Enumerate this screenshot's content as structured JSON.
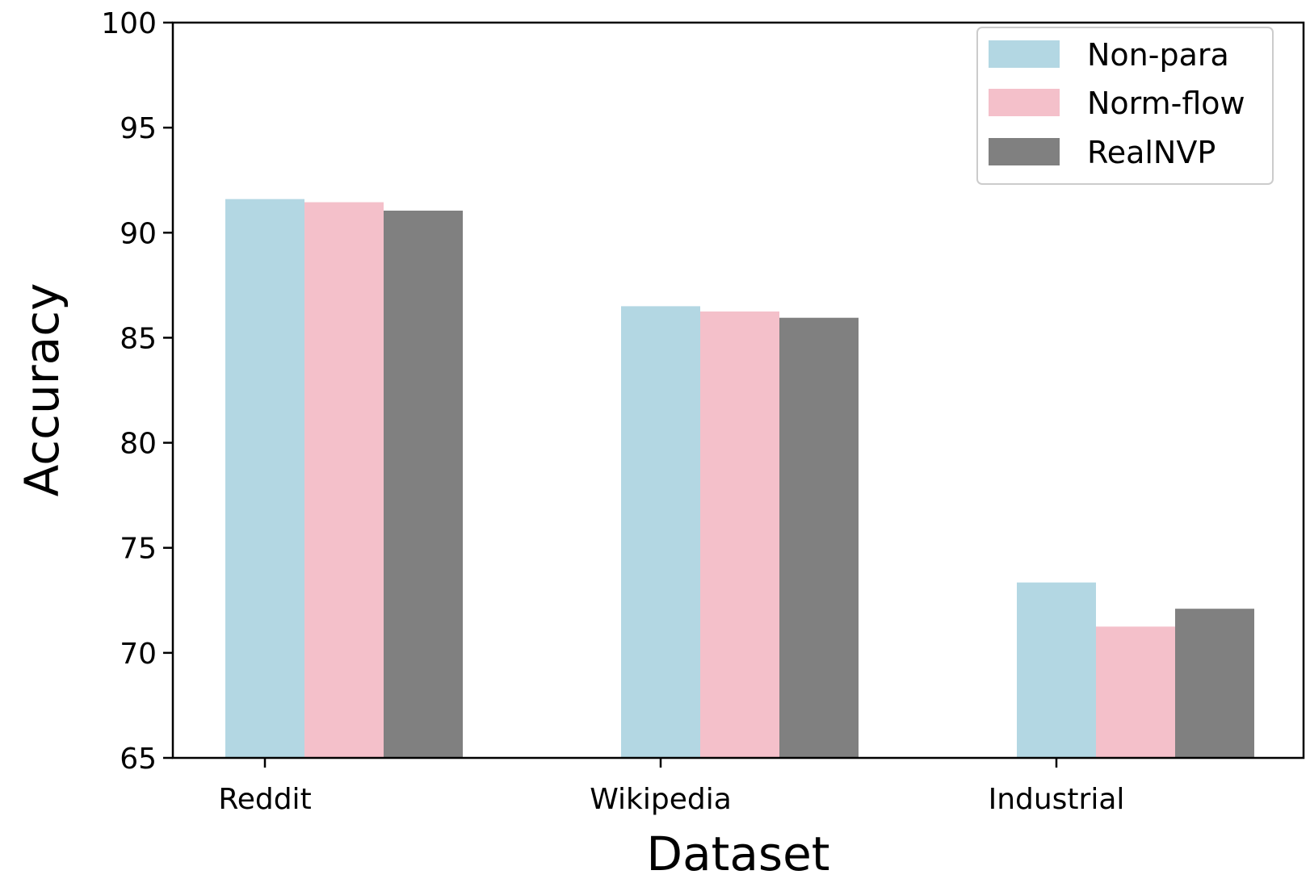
{
  "chart_data": {
    "type": "bar",
    "title": "",
    "xlabel": "Dataset",
    "ylabel": "Accuracy",
    "categories": [
      "Reddit",
      "Wikipedia",
      "Industrial"
    ],
    "series": [
      {
        "name": "Non-para",
        "color": "#b3d7e3",
        "values": [
          91.6,
          86.5,
          73.35
        ]
      },
      {
        "name": "Norm-flow",
        "color": "#f4c0ca",
        "values": [
          91.45,
          86.25,
          71.25
        ]
      },
      {
        "name": "RealNVP",
        "color": "#808080",
        "values": [
          91.05,
          85.95,
          72.1
        ]
      }
    ],
    "ylim": [
      65,
      100
    ],
    "yticks": [
      "65",
      "70",
      "75",
      "80",
      "85",
      "90",
      "95",
      "100"
    ],
    "grid": false,
    "legend_position": "top-right"
  }
}
